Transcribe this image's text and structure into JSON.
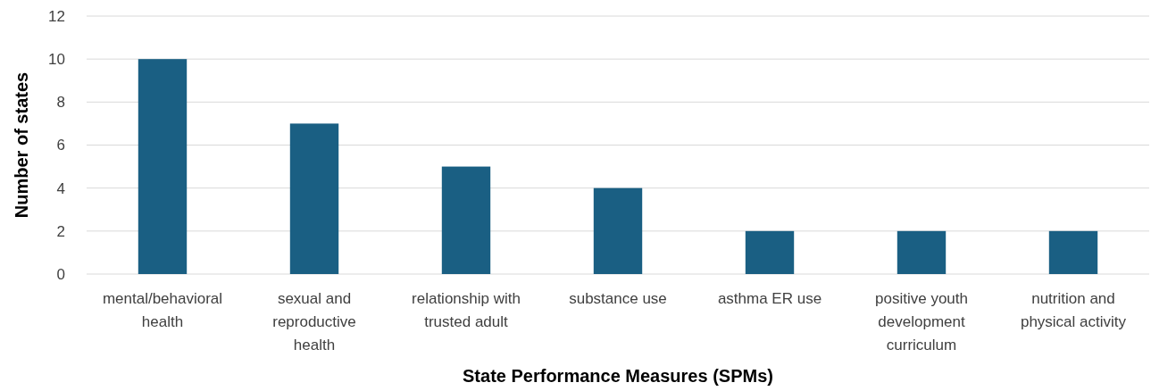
{
  "chart_data": {
    "type": "bar",
    "xlabel": "State Performance Measures (SPMs)",
    "ylabel": "Number of states",
    "categories": [
      "mental/behavioral health",
      "sexual and reproductive health",
      "relationship with trusted adult",
      "substance use",
      "asthma ER use",
      "positive youth development curriculum",
      "nutrition and physical activity"
    ],
    "values": [
      10,
      7,
      5,
      4,
      2,
      2,
      2
    ],
    "color": "#1a5f83",
    "ylim": [
      0,
      12
    ],
    "yticks": [
      0,
      2,
      4,
      6,
      8,
      10,
      12
    ],
    "grid": "y"
  }
}
